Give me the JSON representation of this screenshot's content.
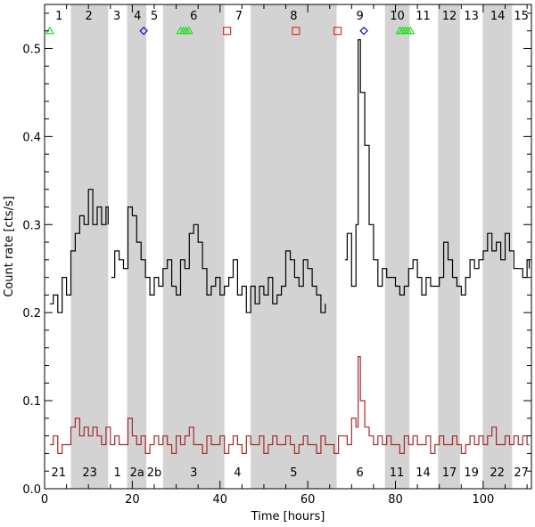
{
  "chart_data": {
    "type": "line",
    "title": "",
    "xlabel": "Time [hours]",
    "ylabel": "Count rate [cts/s]",
    "xlim": [
      0,
      111
    ],
    "ylim": [
      0,
      0.55
    ],
    "x_ticks": [
      0,
      20,
      40,
      60,
      80,
      100
    ],
    "y_ticks": [
      0.0,
      0.1,
      0.2,
      0.3,
      0.4,
      0.5
    ],
    "y_tick_labels": [
      "0.0",
      "0.1",
      "0.2",
      "0.3",
      "0.4",
      "0.5"
    ],
    "shaded_intervals": [
      [
        6,
        14.5
      ],
      [
        18.8,
        23.2
      ],
      [
        27,
        41
      ],
      [
        47,
        66.6
      ],
      [
        77.6,
        83.2
      ],
      [
        89.7,
        94.7
      ],
      [
        99.9,
        106.6
      ]
    ],
    "top_labels": [
      {
        "text": "1",
        "x": 3.3
      },
      {
        "text": "2",
        "x": 10.1
      },
      {
        "text": "3",
        "x": 16.5
      },
      {
        "text": "4",
        "x": 21.2
      },
      {
        "text": "5",
        "x": 25.0
      },
      {
        "text": "6",
        "x": 34.0
      },
      {
        "text": "7",
        "x": 44.3
      },
      {
        "text": "8",
        "x": 56.8
      },
      {
        "text": "9",
        "x": 71.9
      },
      {
        "text": "10",
        "x": 80.4
      },
      {
        "text": "11",
        "x": 86.3
      },
      {
        "text": "12",
        "x": 92.3
      },
      {
        "text": "13",
        "x": 97.3
      },
      {
        "text": "14",
        "x": 103.3
      },
      {
        "text": "15",
        "x": 108.7
      }
    ],
    "bottom_labels": [
      {
        "text": "21",
        "x": 3.2
      },
      {
        "text": "23",
        "x": 10.3
      },
      {
        "text": "1",
        "x": 16.6
      },
      {
        "text": "2a",
        "x": 21.1
      },
      {
        "text": "2b",
        "x": 25.0
      },
      {
        "text": "3",
        "x": 34.0
      },
      {
        "text": "4",
        "x": 44.0
      },
      {
        "text": "5",
        "x": 56.8
      },
      {
        "text": "6",
        "x": 71.9
      },
      {
        "text": "11",
        "x": 80.3
      },
      {
        "text": "14",
        "x": 86.3
      },
      {
        "text": "17",
        "x": 92.3
      },
      {
        "text": "19",
        "x": 97.3
      },
      {
        "text": "22",
        "x": 103.2
      },
      {
        "text": "27",
        "x": 108.7
      }
    ],
    "markers": [
      {
        "shape": "triangle",
        "color": "#22dd22",
        "points": [
          [
            1.2,
            0.52
          ],
          [
            31.0,
            0.52
          ],
          [
            31.7,
            0.52
          ],
          [
            32.3,
            0.52
          ],
          [
            32.9,
            0.52
          ],
          [
            81.0,
            0.52
          ],
          [
            81.6,
            0.52
          ],
          [
            82.2,
            0.52
          ],
          [
            82.8,
            0.52
          ],
          [
            83.4,
            0.52
          ]
        ]
      },
      {
        "shape": "diamond",
        "color": "#1111cc",
        "points": [
          [
            22.6,
            0.52
          ],
          [
            72.8,
            0.52
          ]
        ]
      },
      {
        "shape": "square",
        "color": "#dd3322",
        "points": [
          [
            41.6,
            0.52
          ],
          [
            57.3,
            0.52
          ],
          [
            66.8,
            0.52
          ]
        ]
      }
    ],
    "series": [
      {
        "name": "upper",
        "color": "#000000",
        "segments": [
          {
            "x": [
              1.2,
              2,
              3,
              4,
              5,
              6,
              7,
              8,
              9,
              10,
              11,
              12,
              13,
              14,
              14.5
            ],
            "y": [
              0.21,
              0.22,
              0.2,
              0.24,
              0.22,
              0.27,
              0.29,
              0.31,
              0.3,
              0.34,
              0.3,
              0.32,
              0.3,
              0.32,
              0.3
            ]
          },
          {
            "x": [
              15.2,
              16,
              17,
              18,
              19,
              20,
              21,
              22,
              23,
              24,
              25,
              26,
              27,
              28,
              29,
              30,
              31,
              32,
              33,
              34,
              35,
              36,
              37,
              38,
              39,
              40,
              41,
              42,
              43,
              44,
              45,
              46,
              47,
              48,
              49,
              50,
              51,
              52,
              53,
              54,
              55,
              56,
              57,
              58,
              59,
              60,
              61,
              62,
              63,
              64
            ],
            "y": [
              0.24,
              0.27,
              0.26,
              0.25,
              0.32,
              0.31,
              0.28,
              0.26,
              0.24,
              0.22,
              0.24,
              0.23,
              0.25,
              0.26,
              0.23,
              0.22,
              0.26,
              0.25,
              0.29,
              0.3,
              0.28,
              0.25,
              0.22,
              0.23,
              0.24,
              0.22,
              0.23,
              0.24,
              0.26,
              0.22,
              0.23,
              0.2,
              0.23,
              0.21,
              0.23,
              0.22,
              0.24,
              0.21,
              0.22,
              0.23,
              0.27,
              0.26,
              0.24,
              0.23,
              0.26,
              0.25,
              0.23,
              0.22,
              0.2,
              0.21
            ]
          },
          {
            "x": [
              68.5,
              69,
              70,
              71,
              71.5,
              72,
              73,
              74,
              75,
              76,
              77,
              78,
              79,
              80,
              81,
              82,
              83,
              84,
              85,
              86,
              87,
              88,
              89,
              90,
              91,
              92,
              93,
              94,
              95,
              96,
              97,
              98,
              99,
              100,
              101,
              102,
              103,
              104,
              105,
              106,
              107,
              108,
              109,
              110,
              110.5
            ],
            "y": [
              0.26,
              0.29,
              0.23,
              0.3,
              0.51,
              0.45,
              0.39,
              0.3,
              0.26,
              0.23,
              0.25,
              0.24,
              0.24,
              0.23,
              0.22,
              0.23,
              0.25,
              0.26,
              0.24,
              0.22,
              0.24,
              0.23,
              0.23,
              0.24,
              0.28,
              0.26,
              0.24,
              0.23,
              0.22,
              0.24,
              0.26,
              0.25,
              0.26,
              0.27,
              0.29,
              0.27,
              0.28,
              0.26,
              0.29,
              0.27,
              0.25,
              0.25,
              0.24,
              0.26,
              0.25
            ]
          }
        ]
      },
      {
        "name": "lower",
        "color": "#a52a2a",
        "segments": [
          {
            "x": [
              1.2,
              2,
              3,
              4,
              5,
              6,
              7,
              8,
              9,
              10,
              11,
              12,
              13,
              14,
              15,
              16,
              17,
              18,
              19,
              20,
              21,
              22,
              23,
              24,
              25,
              26,
              27,
              28,
              29,
              30,
              31,
              32,
              33,
              34,
              35,
              36,
              37,
              38,
              39,
              40,
              41,
              42,
              43,
              44,
              45,
              46,
              47,
              48,
              49,
              50,
              51,
              52,
              53,
              54,
              55,
              56,
              57,
              58,
              59,
              60,
              61,
              62,
              63,
              64,
              65,
              66,
              67,
              68,
              69,
              70,
              71,
              71.5,
              72,
              73,
              74,
              75,
              76,
              77,
              78,
              79,
              80,
              81,
              82,
              83,
              84,
              85,
              86,
              87,
              88,
              89,
              90,
              91,
              92,
              93,
              94,
              95,
              96,
              97,
              98,
              99,
              100,
              101,
              102,
              103,
              104,
              105,
              106,
              107,
              108,
              109,
              110,
              110.5
            ],
            "y": [
              0.05,
              0.06,
              0.04,
              0.05,
              0.05,
              0.07,
              0.08,
              0.06,
              0.07,
              0.06,
              0.07,
              0.06,
              0.05,
              0.07,
              0.05,
              0.06,
              0.05,
              0.05,
              0.08,
              0.06,
              0.05,
              0.06,
              0.04,
              0.05,
              0.06,
              0.05,
              0.06,
              0.05,
              0.04,
              0.06,
              0.05,
              0.06,
              0.07,
              0.05,
              0.05,
              0.04,
              0.06,
              0.05,
              0.05,
              0.06,
              0.04,
              0.05,
              0.06,
              0.05,
              0.04,
              0.06,
              0.05,
              0.05,
              0.06,
              0.04,
              0.05,
              0.06,
              0.05,
              0.05,
              0.06,
              0.05,
              0.04,
              0.05,
              0.06,
              0.05,
              0.05,
              0.04,
              0.06,
              0.05,
              0.05,
              0.04,
              0.06,
              0.06,
              0.05,
              0.08,
              0.07,
              0.15,
              0.1,
              0.07,
              0.06,
              0.05,
              0.06,
              0.05,
              0.06,
              0.05,
              0.05,
              0.04,
              0.06,
              0.05,
              0.06,
              0.05,
              0.05,
              0.06,
              0.04,
              0.05,
              0.06,
              0.05,
              0.05,
              0.06,
              0.05,
              0.04,
              0.05,
              0.06,
              0.05,
              0.06,
              0.05,
              0.06,
              0.07,
              0.05,
              0.05,
              0.06,
              0.05,
              0.06,
              0.05,
              0.06,
              0.05,
              0.05
            ]
          }
        ]
      }
    ]
  }
}
